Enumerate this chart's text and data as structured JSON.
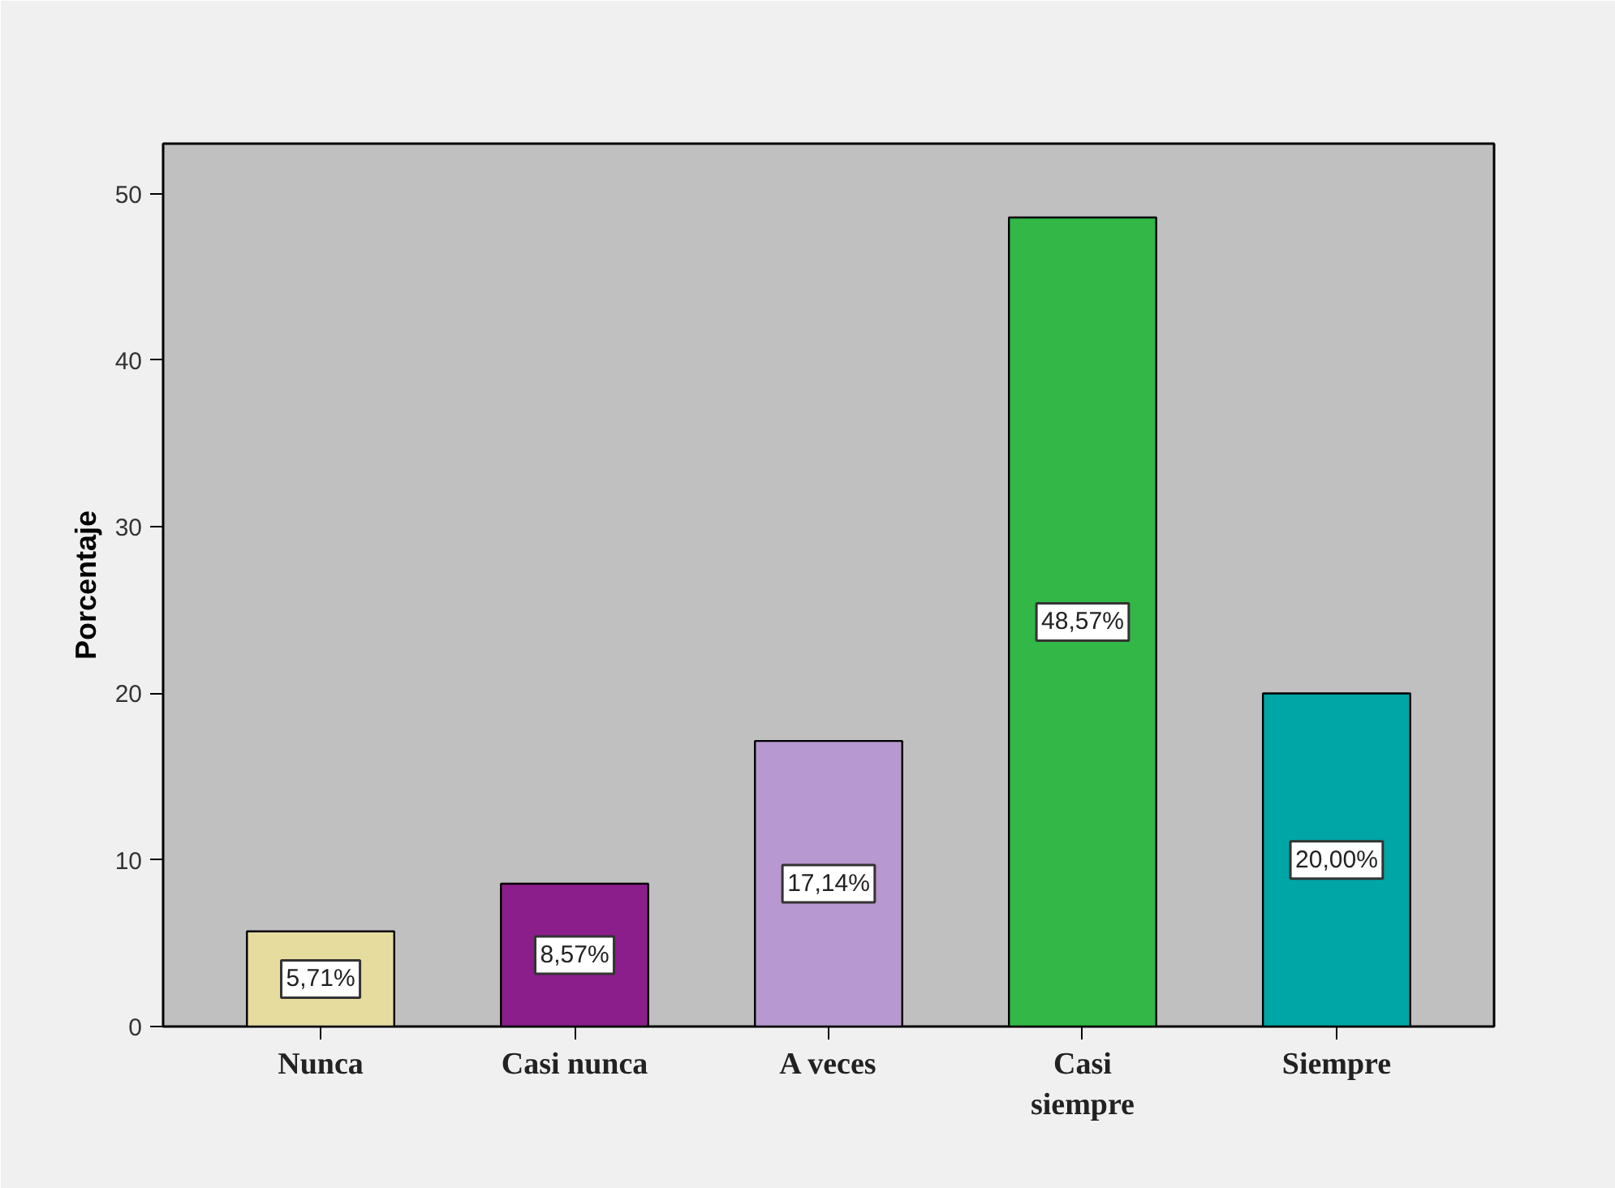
{
  "chart_data": {
    "type": "bar",
    "ylabel": "Porcentaje",
    "categories": [
      "Nunca",
      "Casi nunca",
      "A veces",
      "Casi siempre",
      "Siempre"
    ],
    "values": [
      5.71,
      8.57,
      17.14,
      48.57,
      20.0
    ],
    "colors": [
      "#e6dc9e",
      "#8c1e8c",
      "#b898d0",
      "#33b747",
      "#00a5a5"
    ],
    "value_labels": [
      "5,71%",
      "8,57%",
      "17,14%",
      "48,57%",
      "20,00%"
    ],
    "ylim": [
      0,
      53
    ],
    "yticks": [
      0,
      10,
      20,
      30,
      40,
      50
    ],
    "grid": false
  }
}
